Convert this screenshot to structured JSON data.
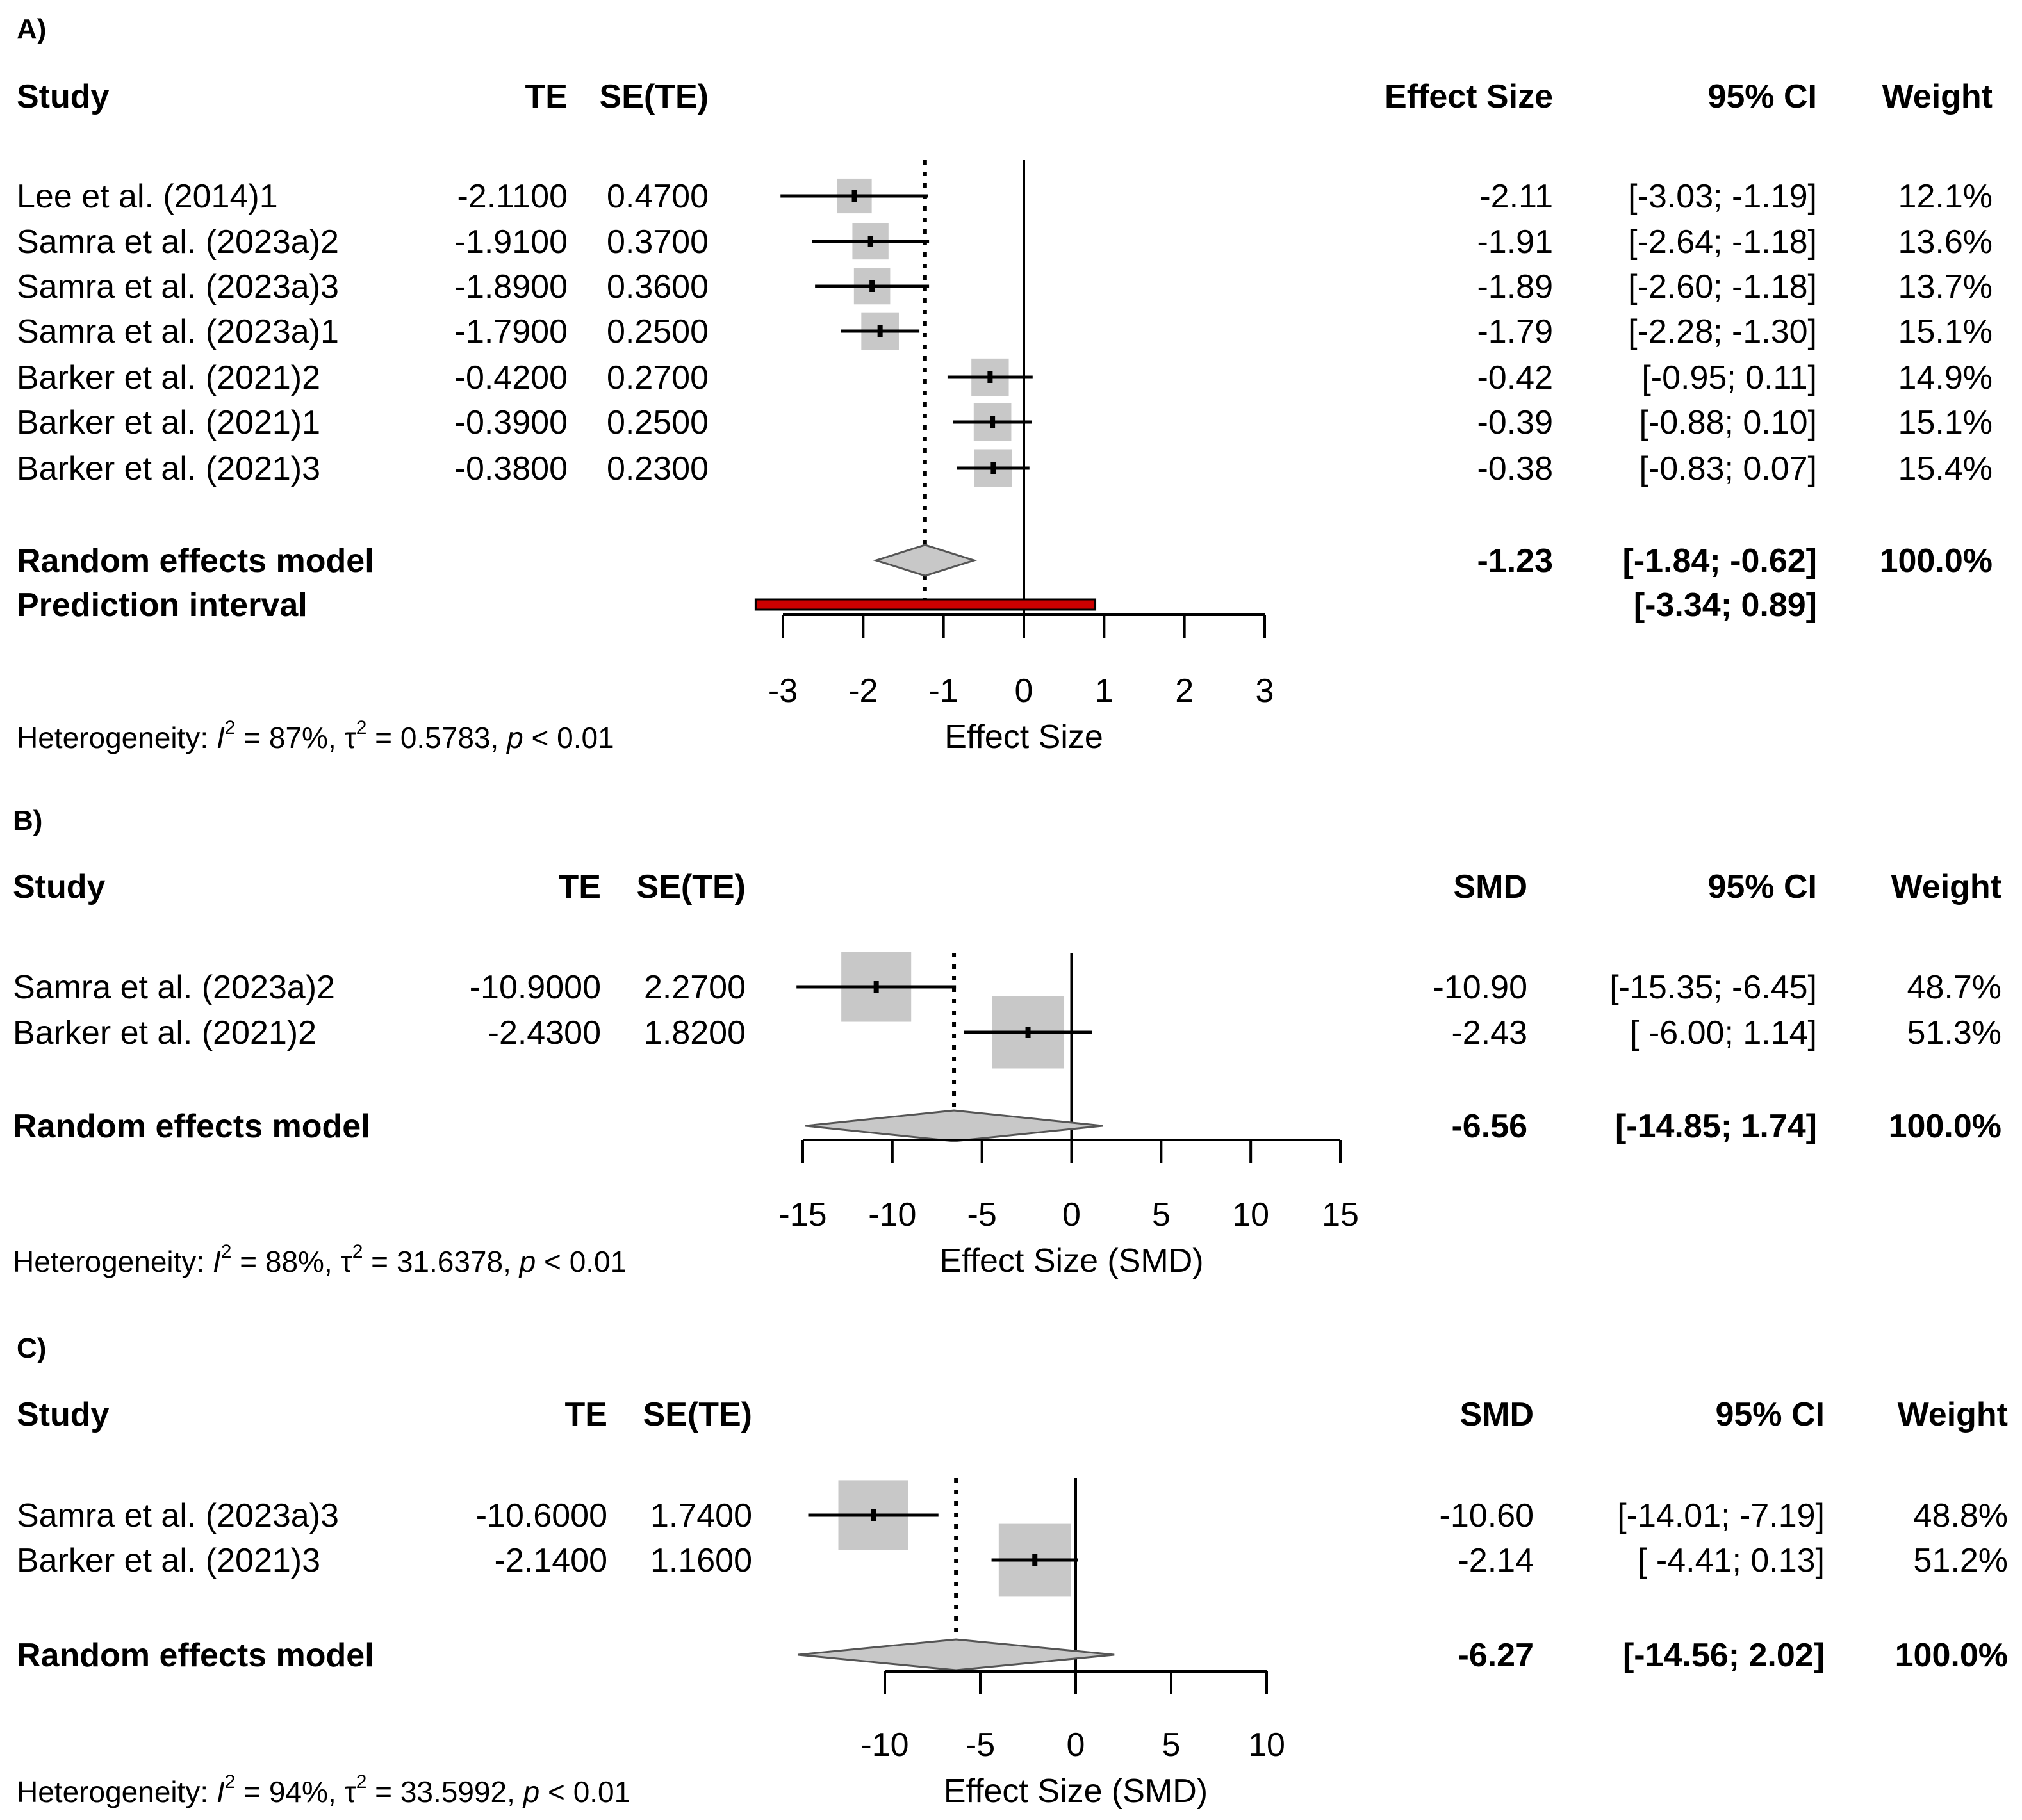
{
  "colors": {
    "box": "#c8c8c8",
    "diamond": "#c8c8c8",
    "prediction": "#cc0000",
    "line": "#000000"
  },
  "chart_data": [
    {
      "type": "forest",
      "panel_label": "A)",
      "columns": {
        "study": "Study",
        "te": "TE",
        "se": "SE(TE)",
        "effect": "Effect Size",
        "ci": "95% CI",
        "weight": "Weight"
      },
      "xlim": [
        -3,
        3
      ],
      "xticks": [
        "-3",
        "-2",
        "-1",
        "0",
        "1",
        "2",
        "3"
      ],
      "xlabel": "Effect Size",
      "studies": [
        {
          "name": "Lee et al. (2014)1",
          "te": "-2.1100",
          "se": "0.4700",
          "est": "-2.11",
          "ci": "[-3.03; -1.19]",
          "weight": "12.1%",
          "val": -2.11,
          "lo": -3.03,
          "hi": -1.19,
          "w": 12.1
        },
        {
          "name": "Samra et al. (2023a)2",
          "te": "-1.9100",
          "se": "0.3700",
          "est": "-1.91",
          "ci": "[-2.64; -1.18]",
          "weight": "13.6%",
          "val": -1.91,
          "lo": -2.64,
          "hi": -1.18,
          "w": 13.6
        },
        {
          "name": "Samra et al. (2023a)3",
          "te": "-1.8900",
          "se": "0.3600",
          "est": "-1.89",
          "ci": "[-2.60; -1.18]",
          "weight": "13.7%",
          "val": -1.89,
          "lo": -2.6,
          "hi": -1.18,
          "w": 13.7
        },
        {
          "name": "Samra et al. (2023a)1",
          "te": "-1.7900",
          "se": "0.2500",
          "est": "-1.79",
          "ci": "[-2.28; -1.30]",
          "weight": "15.1%",
          "val": -1.79,
          "lo": -2.28,
          "hi": -1.3,
          "w": 15.1
        },
        {
          "name": "Barker et al. (2021)2",
          "te": "-0.4200",
          "se": "0.2700",
          "est": "-0.42",
          "ci": "[-0.95; 0.11]",
          "weight": "14.9%",
          "val": -0.42,
          "lo": -0.95,
          "hi": 0.11,
          "w": 14.9
        },
        {
          "name": "Barker et al. (2021)1",
          "te": "-0.3900",
          "se": "0.2500",
          "est": "-0.39",
          "ci": "[-0.88; 0.10]",
          "weight": "15.1%",
          "val": -0.39,
          "lo": -0.88,
          "hi": 0.1,
          "w": 15.1
        },
        {
          "name": "Barker et al. (2021)3",
          "te": "-0.3800",
          "se": "0.2300",
          "est": "-0.38",
          "ci": "[-0.83; 0.07]",
          "weight": "15.4%",
          "val": -0.38,
          "lo": -0.83,
          "hi": 0.07,
          "w": 15.4
        }
      ],
      "pooled": {
        "label": "Random effects model",
        "est": "-1.23",
        "ci": "[-1.84; -0.62]",
        "weight": "100.0%",
        "val": -1.23,
        "lo": -1.84,
        "hi": -0.62
      },
      "prediction": {
        "label": "Prediction interval",
        "ci": "[-3.34;  0.89]",
        "lo": -3.34,
        "hi": 0.89
      },
      "heterogeneity": {
        "prefix": "Heterogeneity: ",
        "i2": "87%",
        "tau2": "0.5783",
        "p": "0.01"
      }
    },
    {
      "type": "forest",
      "panel_label": "B)",
      "columns": {
        "study": "Study",
        "te": "TE",
        "se": "SE(TE)",
        "effect": "SMD",
        "ci": "95% CI",
        "weight": "Weight"
      },
      "xlim": [
        -15,
        15
      ],
      "xticks": [
        "-15",
        "-10",
        "-5",
        "0",
        "5",
        "10",
        "15"
      ],
      "xlabel": "Effect Size (SMD)",
      "studies": [
        {
          "name": "Samra et al. (2023a)2",
          "te": "-10.9000",
          "se": "2.2700",
          "est": "-10.90",
          "ci": "[-15.35; -6.45]",
          "weight": "48.7%",
          "val": -10.9,
          "lo": -15.35,
          "hi": -6.45,
          "w": 48.7
        },
        {
          "name": "Barker et al. (2021)2",
          "te": "-2.4300",
          "se": "1.8200",
          "est": "-2.43",
          "ci": "[ -6.00;  1.14]",
          "weight": "51.3%",
          "val": -2.43,
          "lo": -6.0,
          "hi": 1.14,
          "w": 51.3
        }
      ],
      "pooled": {
        "label": "Random effects model",
        "est": "-6.56",
        "ci": "[-14.85;  1.74]",
        "weight": "100.0%",
        "val": -6.56,
        "lo": -14.85,
        "hi": 1.74
      },
      "heterogeneity": {
        "prefix": "Heterogeneity: ",
        "i2": "88%",
        "tau2": "31.6378",
        "p": "0.01"
      }
    },
    {
      "type": "forest",
      "panel_label": "C)",
      "columns": {
        "study": "Study",
        "te": "TE",
        "se": "SE(TE)",
        "effect": "SMD",
        "ci": "95% CI",
        "weight": "Weight"
      },
      "xlim": [
        -10,
        10
      ],
      "xticks": [
        "-10",
        "-5",
        "0",
        "5",
        "10"
      ],
      "xlabel": "Effect Size (SMD)",
      "studies": [
        {
          "name": "Samra et al. (2023a)3",
          "te": "-10.6000",
          "se": "1.7400",
          "est": "-10.60",
          "ci": "[-14.01; -7.19]",
          "weight": "48.8%",
          "val": -10.6,
          "lo": -14.01,
          "hi": -7.19,
          "w": 48.8
        },
        {
          "name": "Barker et al. (2021)3",
          "te": "-2.1400",
          "se": "1.1600",
          "est": "-2.14",
          "ci": "[ -4.41;  0.13]",
          "weight": "51.2%",
          "val": -2.14,
          "lo": -4.41,
          "hi": 0.13,
          "w": 51.2
        }
      ],
      "pooled": {
        "label": "Random effects model",
        "est": "-6.27",
        "ci": "[-14.56;  2.02]",
        "weight": "100.0%",
        "val": -6.27,
        "lo": -14.56,
        "hi": 2.02
      },
      "heterogeneity": {
        "prefix": "Heterogeneity: ",
        "i2": "94%",
        "tau2": "33.5992",
        "p": "0.01"
      }
    }
  ]
}
